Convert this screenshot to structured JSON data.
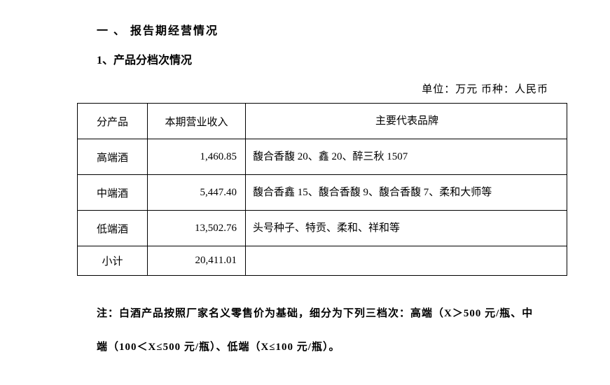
{
  "heading1": "一 、 报告期经营情况",
  "heading2": "1、产品分档次情况",
  "unit_line": "单位：万元  币种：人民币",
  "table": {
    "headers": {
      "product": "分产品",
      "revenue": "本期营业收入",
      "brand": "主要代表品牌"
    },
    "rows": [
      {
        "product": "高端酒",
        "revenue": "1,460.85",
        "brand": "馥合香馥 20、鑫 20、醉三秋 1507"
      },
      {
        "product": "中端酒",
        "revenue": "5,447.40",
        "brand": "馥合香鑫 15、馥合香馥 9、馥合香馥 7、柔和大师等"
      },
      {
        "product": "低端酒",
        "revenue": "13,502.76",
        "brand": "头号种子、特贡、柔和、祥和等"
      },
      {
        "product": "小计",
        "revenue": "20,411.01",
        "brand": ""
      }
    ]
  },
  "note": "注：白酒产品按照厂家名义零售价为基础，细分为下列三档次：高端（X＞500 元/瓶、中端（100＜X≤500 元/瓶）、低端（X≤100 元/瓶）。"
}
